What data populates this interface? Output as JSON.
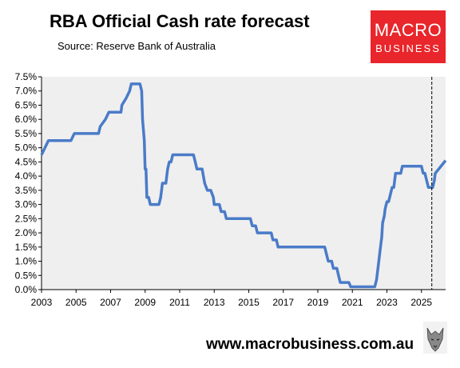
{
  "header": {
    "title": "RBA Official Cash rate forecast",
    "subtitle": "Source: Reserve Bank of Australia"
  },
  "logo": {
    "line1": "MACRO",
    "line2": "BUSINESS"
  },
  "footer": {
    "url": "www.macrobusiness.com.au"
  },
  "colors": {
    "line": "#4a7bc8",
    "plot_bg": "#efefef",
    "logo_bg": "#e8262b",
    "forecast_marker": "#000000"
  },
  "chart_data": {
    "type": "line",
    "title": "RBA Official Cash rate forecast",
    "xlim": [
      2003,
      2026.4
    ],
    "ylim": [
      0,
      7.5
    ],
    "x_ticks": [
      "2003",
      "2005",
      "2007",
      "2009",
      "2011",
      "2013",
      "2015",
      "2017",
      "2019",
      "2021",
      "2023",
      "2025"
    ],
    "y_ticks": [
      "0.0%",
      "0.5%",
      "1.0%",
      "1.5%",
      "2.0%",
      "2.5%",
      "3.0%",
      "3.5%",
      "4.0%",
      "4.5%",
      "5.0%",
      "5.5%",
      "6.0%",
      "6.5%",
      "7.0%",
      "7.5%"
    ],
    "grid": false,
    "forecast_start": 2025.6,
    "series": [
      {
        "values": [
          [
            2003.0,
            4.75
          ],
          [
            2003.4,
            5.25
          ],
          [
            2004.7,
            5.25
          ],
          [
            2004.9,
            5.5
          ],
          [
            2006.3,
            5.5
          ],
          [
            2006.4,
            5.75
          ],
          [
            2006.7,
            6.0
          ],
          [
            2006.9,
            6.25
          ],
          [
            2007.6,
            6.25
          ],
          [
            2007.65,
            6.5
          ],
          [
            2007.9,
            6.75
          ],
          [
            2008.1,
            7.0
          ],
          [
            2008.2,
            7.25
          ],
          [
            2008.7,
            7.25
          ],
          [
            2008.8,
            7.0
          ],
          [
            2008.85,
            6.0
          ],
          [
            2008.95,
            5.25
          ],
          [
            2009.0,
            4.25
          ],
          [
            2009.05,
            4.25
          ],
          [
            2009.1,
            3.25
          ],
          [
            2009.2,
            3.25
          ],
          [
            2009.3,
            3.0
          ],
          [
            2009.8,
            3.0
          ],
          [
            2009.9,
            3.25
          ],
          [
            2010.0,
            3.75
          ],
          [
            2010.2,
            3.75
          ],
          [
            2010.3,
            4.25
          ],
          [
            2010.4,
            4.5
          ],
          [
            2010.5,
            4.5
          ],
          [
            2010.6,
            4.75
          ],
          [
            2011.8,
            4.75
          ],
          [
            2011.9,
            4.5
          ],
          [
            2012.0,
            4.25
          ],
          [
            2012.3,
            4.25
          ],
          [
            2012.45,
            3.75
          ],
          [
            2012.6,
            3.5
          ],
          [
            2012.8,
            3.5
          ],
          [
            2012.95,
            3.25
          ],
          [
            2013.0,
            3.0
          ],
          [
            2013.3,
            3.0
          ],
          [
            2013.4,
            2.75
          ],
          [
            2013.6,
            2.75
          ],
          [
            2013.7,
            2.5
          ],
          [
            2015.1,
            2.5
          ],
          [
            2015.2,
            2.25
          ],
          [
            2015.4,
            2.25
          ],
          [
            2015.5,
            2.0
          ],
          [
            2016.3,
            2.0
          ],
          [
            2016.4,
            1.75
          ],
          [
            2016.6,
            1.75
          ],
          [
            2016.7,
            1.5
          ],
          [
            2019.4,
            1.5
          ],
          [
            2019.5,
            1.25
          ],
          [
            2019.6,
            1.0
          ],
          [
            2019.8,
            1.0
          ],
          [
            2019.9,
            0.75
          ],
          [
            2020.1,
            0.75
          ],
          [
            2020.2,
            0.5
          ],
          [
            2020.3,
            0.25
          ],
          [
            2020.8,
            0.25
          ],
          [
            2020.9,
            0.1
          ],
          [
            2022.3,
            0.1
          ],
          [
            2022.4,
            0.35
          ],
          [
            2022.5,
            0.85
          ],
          [
            2022.6,
            1.35
          ],
          [
            2022.7,
            1.85
          ],
          [
            2022.75,
            2.35
          ],
          [
            2022.85,
            2.6
          ],
          [
            2022.9,
            2.85
          ],
          [
            2023.0,
            3.1
          ],
          [
            2023.1,
            3.1
          ],
          [
            2023.2,
            3.35
          ],
          [
            2023.3,
            3.6
          ],
          [
            2023.4,
            3.6
          ],
          [
            2023.45,
            3.85
          ],
          [
            2023.5,
            4.1
          ],
          [
            2023.8,
            4.1
          ],
          [
            2023.9,
            4.35
          ],
          [
            2025.0,
            4.35
          ],
          [
            2025.1,
            4.1
          ],
          [
            2025.2,
            4.1
          ],
          [
            2025.3,
            3.85
          ],
          [
            2025.4,
            3.6
          ],
          [
            2025.65,
            3.6
          ],
          [
            2025.75,
            3.85
          ],
          [
            2025.8,
            4.1
          ],
          [
            2026.0,
            4.25
          ],
          [
            2026.2,
            4.4
          ],
          [
            2026.4,
            4.55
          ]
        ]
      }
    ]
  }
}
